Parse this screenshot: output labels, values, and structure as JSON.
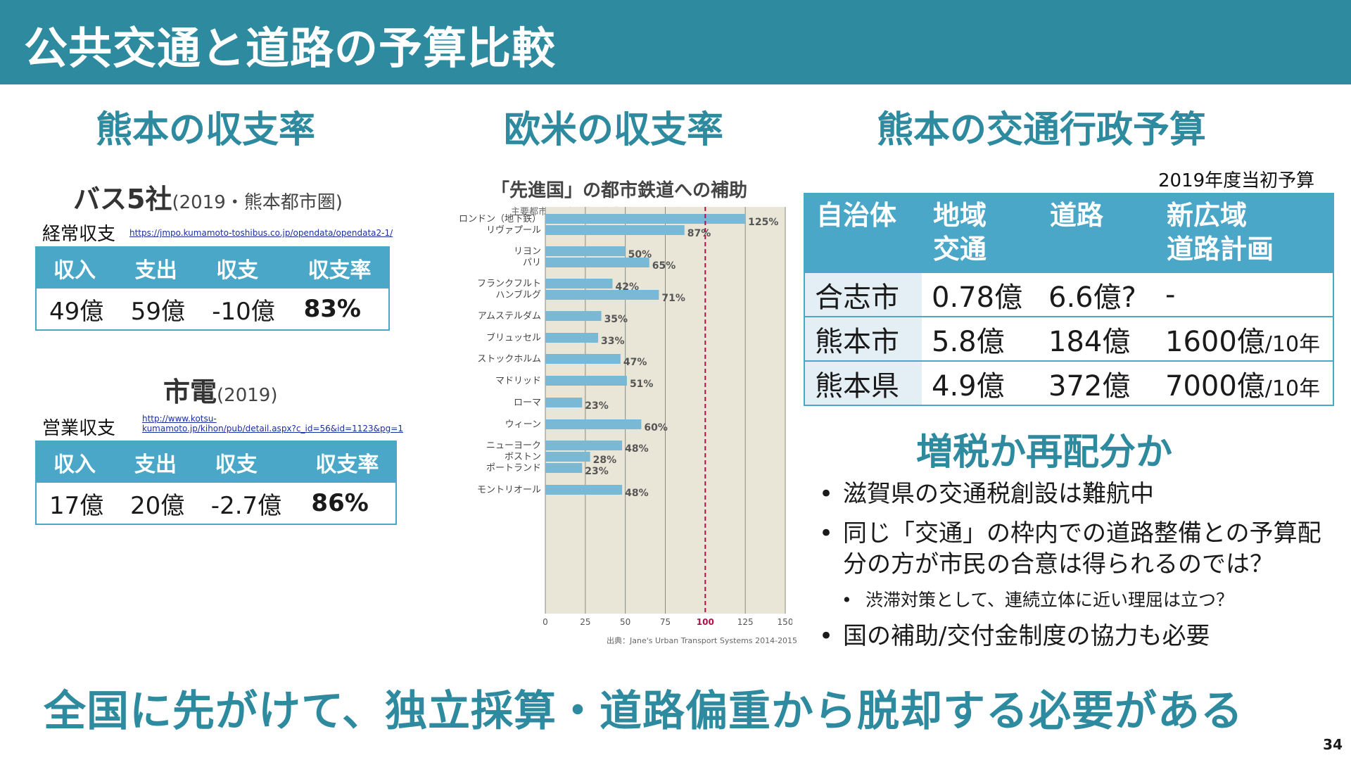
{
  "title": "公共交通と道路の予算比較",
  "sections": {
    "left": "熊本の収支率",
    "center": "欧米の収支率",
    "right": "熊本の交通行政予算"
  },
  "bus": {
    "heading": "バス5社",
    "heading_note": "(2019・熊本都市圏)",
    "label": "経常収支",
    "link": "https://jmpo.kumamoto-toshibus.co.jp/opendata/opendata2-1/",
    "headers": [
      "収入",
      "支出",
      "収支",
      "収支率"
    ],
    "values": [
      "49億",
      "59億",
      "-10億",
      "83%"
    ]
  },
  "tram": {
    "heading": "市電",
    "heading_note": "(2019)",
    "label": "営業収支",
    "link_line1": "http://www.kotsu-",
    "link_line2": "kumamoto.jp/kihon/pub/detail.aspx?c_id=56&id=1123&pg=1",
    "headers": [
      "収入",
      "支出",
      "収支",
      "収支率"
    ],
    "values": [
      "17億",
      "20億",
      "-2.7億",
      "86%"
    ]
  },
  "chart_data": {
    "type": "bar",
    "orientation": "horizontal",
    "title": "「先進国」の都市鉄道への補助",
    "subtitle": "主要都市（代表的交通事業）における運賃回収率",
    "source": "出典：Jane's Urban Transport Systems 2014-2015",
    "categories": [
      "ロンドン（地下鉄）",
      "リヴァプール",
      "リヨン",
      "パリ",
      "フランクフルト",
      "ハンブルグ",
      "アムステルダム",
      "ブリュッセル",
      "ストックホルム",
      "マドリッド",
      "ローマ",
      "ウィーン",
      "ニューヨーク",
      "ボストン",
      "ポートランド",
      "モントリオール"
    ],
    "values": [
      125,
      87,
      50,
      65,
      42,
      71,
      35,
      33,
      47,
      51,
      23,
      60,
      48,
      28,
      23,
      48
    ],
    "value_labels": [
      "125%",
      "87%",
      "50%",
      "65%",
      "42%",
      "71%",
      "35%",
      "33%",
      "47%",
      "51%",
      "23%",
      "60%",
      "48%",
      "28%",
      "23%",
      "48%"
    ],
    "xlim": [
      0,
      150
    ],
    "xticks": [
      "0",
      "25",
      "50",
      "75",
      "100",
      "125",
      "150"
    ],
    "reference_line": 100,
    "colors": {
      "bar": "#7ab9d6",
      "plot_bg": "#e9e6d8",
      "reference": "#b0104a"
    }
  },
  "budget": {
    "note": "2019年度当初予算",
    "headers": [
      [
        "自治体"
      ],
      [
        "地域",
        "交通"
      ],
      [
        "道路"
      ],
      [
        "新広域",
        "道路計画"
      ]
    ],
    "rows": [
      {
        "city": "合志市",
        "transit": "0.78億",
        "road": "6.6億?",
        "plan": "-",
        "plan_unit": ""
      },
      {
        "city": "熊本市",
        "transit": "5.8億",
        "road": "184億",
        "plan": "1600億",
        "plan_unit": "/10年"
      },
      {
        "city": "熊本県",
        "transit": "4.9億",
        "road": "372億",
        "plan": "7000億",
        "plan_unit": "/10年"
      }
    ]
  },
  "tax": {
    "heading": "増税か再配分か",
    "bullets": [
      "滋賀県の交通税創設は難航中",
      "同じ「交通」の枠内での道路整備との予算配分の方が市民の合意は得られるのでは？",
      "渋滞対策として、連続立体に近い理屈は立つ？",
      "国の補助/交付金制度の協力も必要"
    ]
  },
  "conclusion": "全国に先がけて、独立採算・道路偏重から脱却する必要がある",
  "page_number": "34",
  "colors": {
    "accent": "#2e8a9e",
    "table_header": "#4aa7c7"
  }
}
